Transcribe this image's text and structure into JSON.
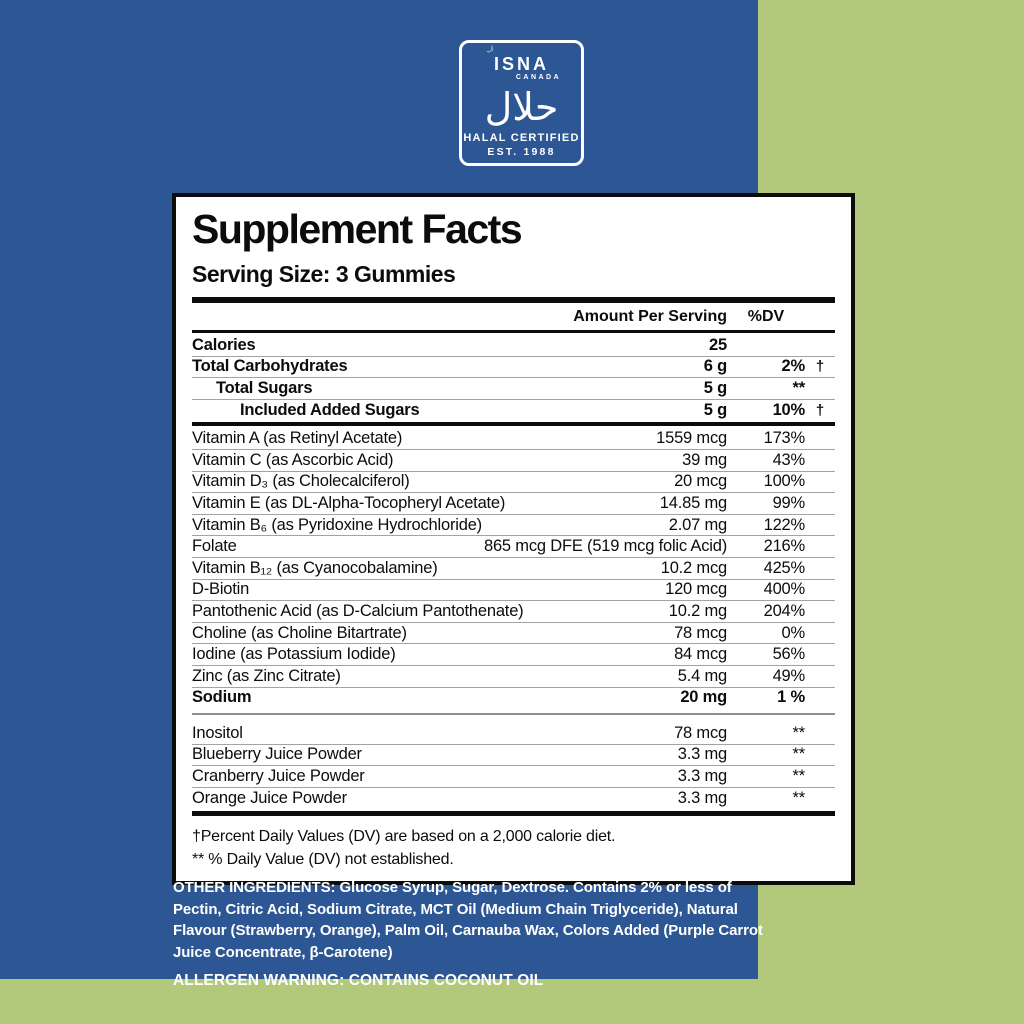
{
  "colors": {
    "background_green": "#b2c87b",
    "panel_blue": "#2d5694",
    "label_white": "#ffffff",
    "text_black": "#0c0c0c"
  },
  "logo": {
    "org": "ISNA",
    "region": "CANADA",
    "arabic": "حلال",
    "crescent": "☽",
    "line1": "HALAL CERTIFIED",
    "line2": "EST. 1988"
  },
  "panel": {
    "title": "Supplement Facts",
    "serving_size": "Serving Size: 3 Gummies",
    "col_amount": "Amount Per Serving",
    "col_dv": "%DV",
    "rows": [
      {
        "label": "Calories",
        "amount": "25",
        "dv": "",
        "dagger": "",
        "bold": true,
        "indent": 0,
        "sep": "thin"
      },
      {
        "label": "Total Carbohydrates",
        "amount": "6 g",
        "dv": "2%",
        "dagger": "†",
        "bold": true,
        "indent": 0,
        "sep": "thin"
      },
      {
        "label": "Total Sugars",
        "amount": "5 g",
        "dv": "**",
        "dagger": "",
        "bold": true,
        "indent": 1,
        "sep": "thin"
      },
      {
        "label": "Included Added Sugars",
        "amount": "5 g",
        "dv": "10%",
        "dagger": "†",
        "bold": true,
        "indent": 2,
        "sep": "thick4"
      },
      {
        "label": "Vitamin A (as Retinyl Acetate)",
        "amount": "1559 mcg",
        "dv": "173%",
        "dagger": "",
        "bold": false,
        "indent": 0,
        "sep": "thin"
      },
      {
        "label": "Vitamin C (as Ascorbic Acid)",
        "amount": "39 mg",
        "dv": "43%",
        "dagger": "",
        "bold": false,
        "indent": 0,
        "sep": "thin"
      },
      {
        "label": "Vitamin D₃ (as Cholecalciferol)",
        "amount": "20 mcg",
        "dv": "100%",
        "dagger": "",
        "bold": false,
        "indent": 0,
        "sep": "thin"
      },
      {
        "label": "Vitamin E (as DL-Alpha-Tocopheryl Acetate)",
        "amount": "14.85 mg",
        "dv": "99%",
        "dagger": "",
        "bold": false,
        "indent": 0,
        "sep": "thin"
      },
      {
        "label": "Vitamin B₆ (as Pyridoxine Hydrochloride)",
        "amount": "2.07 mg",
        "dv": "122%",
        "dagger": "",
        "bold": false,
        "indent": 0,
        "sep": "thin"
      },
      {
        "label": "Folate",
        "amount": "865 mcg DFE (519 mcg folic Acid)",
        "dv": "216%",
        "dagger": "",
        "bold": false,
        "indent": 0,
        "sep": "thin"
      },
      {
        "label": "Vitamin B₁₂ (as Cyanocobalamine)",
        "amount": "10.2 mcg",
        "dv": "425%",
        "dagger": "",
        "bold": false,
        "indent": 0,
        "sep": "thin"
      },
      {
        "label": "D-Biotin",
        "amount": "120 mcg",
        "dv": "400%",
        "dagger": "",
        "bold": false,
        "indent": 0,
        "sep": "thin"
      },
      {
        "label": "Pantothenic Acid (as D-Calcium Pantothenate)",
        "amount": "10.2 mg",
        "dv": "204%",
        "dagger": "",
        "bold": false,
        "indent": 0,
        "sep": "thin"
      },
      {
        "label": "Choline (as Choline Bitartrate)",
        "amount": "78 mcg",
        "dv": "0%",
        "dagger": "",
        "bold": false,
        "indent": 0,
        "sep": "thin"
      },
      {
        "label": "Iodine (as Potassium Iodide)",
        "amount": "84 mcg",
        "dv": "56%",
        "dagger": "",
        "bold": false,
        "indent": 0,
        "sep": "thin"
      },
      {
        "label": "Zinc (as Zinc Citrate)",
        "amount": "5.4 mg",
        "dv": "49%",
        "dagger": "",
        "bold": false,
        "indent": 0,
        "sep": "thin"
      },
      {
        "label": "Sodium",
        "amount": "20 mg",
        "dv": "1 %",
        "dagger": "",
        "bold": true,
        "indent": 0,
        "sep": "gray2"
      },
      {
        "label": "Inositol",
        "amount": "78 mcg",
        "dv": "**",
        "dagger": "",
        "bold": false,
        "indent": 0,
        "sep": "thin"
      },
      {
        "label": "Blueberry Juice Powder",
        "amount": "3.3 mg",
        "dv": "**",
        "dagger": "",
        "bold": false,
        "indent": 0,
        "sep": "thin"
      },
      {
        "label": "Cranberry Juice Powder",
        "amount": "3.3 mg",
        "dv": "**",
        "dagger": "",
        "bold": false,
        "indent": 0,
        "sep": "thin"
      },
      {
        "label": "Orange Juice Powder",
        "amount": "3.3 mg",
        "dv": "**",
        "dagger": "",
        "bold": false,
        "indent": 0,
        "sep": "thick5"
      }
    ],
    "footnotes": [
      "†Percent Daily Values (DV) are based on a 2,000 calorie diet.",
      "** % Daily Value (DV) not established."
    ]
  },
  "bottom": {
    "other_ingredients": "OTHER INGREDIENTS: Glucose Syrup, Sugar, Dextrose. Contains 2% or less of Pectin, Citric Acid, Sodium Citrate, MCT Oil (Medium Chain Triglyceride), Natural Flavour (Strawberry, Orange), Palm Oil, Carnauba Wax, Colors Added (Purple Carrot Juice Concentrate, β-Carotene)",
    "allergen": "ALLERGEN WARNING: CONTAINS COCONUT OIL"
  }
}
